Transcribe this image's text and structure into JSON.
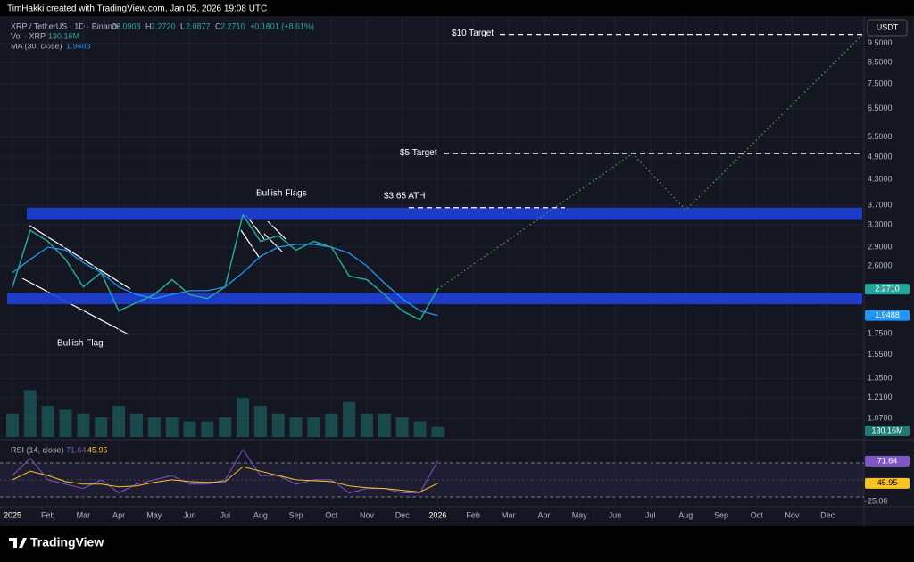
{
  "chart_data": {
    "type": "line",
    "header": "TimHakki created with TradingView.com, Jan 05, 2026 19:08 UTC",
    "symbol": "XRP / TetherUS · 1D · Binance",
    "ohlc": [
      {
        "label": "O",
        "value": "2.0908"
      },
      {
        "label": "H",
        "value": "2.2720"
      },
      {
        "label": "L",
        "value": "2.0877"
      },
      {
        "label": "C",
        "value": "2.2710"
      }
    ],
    "change": "+0.1801 (+8.61%)",
    "currency": "USDT",
    "footer": "TradingView",
    "categories": [
      "2025",
      null,
      "Feb",
      null,
      "Mar",
      null,
      "Apr",
      null,
      "May",
      null,
      "Jun",
      null,
      "Jul",
      null,
      "Aug",
      null,
      "Sep",
      null,
      "Oct",
      null,
      "Nov",
      null,
      "Dec",
      null,
      "2026",
      null,
      "Feb",
      null,
      "Mar",
      null,
      "Apr",
      null,
      "May",
      null,
      "Jun",
      null,
      "Jul",
      null,
      "Aug",
      null,
      "Sep",
      null,
      "Oct",
      null,
      "Nov",
      null,
      "Dec",
      null,
      null
    ],
    "log_scale": true,
    "ylim": [
      0.96,
      10.9
    ],
    "yticks": [
      {
        "value": 9.5,
        "label": "9.5000"
      },
      {
        "value": 8.5,
        "label": "8.5000"
      },
      {
        "value": 7.5,
        "label": "7.5000"
      },
      {
        "value": 6.5,
        "label": "6.5000"
      },
      {
        "value": 5.5,
        "label": "5.5000"
      },
      {
        "value": 4.9,
        "label": "4.9000"
      },
      {
        "value": 4.3,
        "label": "4.3000"
      },
      {
        "value": 3.7,
        "label": "3.7000"
      },
      {
        "value": 3.3,
        "label": "3.3000"
      },
      {
        "value": 2.9,
        "label": "2.9000"
      },
      {
        "value": 2.6,
        "label": "2.6000"
      },
      {
        "value": 1.75,
        "label": "1.7500"
      },
      {
        "value": 1.55,
        "label": "1.5500"
      },
      {
        "value": 1.35,
        "label": "1.3500"
      },
      {
        "value": 1.21,
        "label": "1.2100"
      },
      {
        "value": 1.07,
        "label": "1.0700"
      }
    ],
    "grid": true,
    "price": {
      "name": "XRP / TetherUS",
      "color": "#26a69a",
      "last_label": "2.2710",
      "values": [
        2.3,
        3.2,
        3.0,
        2.7,
        2.3,
        2.5,
        2.0,
        2.1,
        2.2,
        2.4,
        2.2,
        2.15,
        2.3,
        3.5,
        3.0,
        3.1,
        2.85,
        3.0,
        2.9,
        2.45,
        2.4,
        2.2,
        2.0,
        1.9,
        2.271,
        null,
        null,
        null,
        null,
        null,
        null,
        null,
        null,
        null,
        null,
        null,
        null,
        null,
        null,
        null,
        null,
        null,
        null,
        null,
        null,
        null,
        null,
        null,
        null
      ]
    },
    "ma": {
      "name": "MA (30, close)",
      "color": "#2196f3",
      "last_label": "1.9488",
      "values": [
        2.5,
        2.7,
        2.9,
        2.85,
        2.65,
        2.5,
        2.3,
        2.2,
        2.15,
        2.2,
        2.25,
        2.25,
        2.3,
        2.5,
        2.75,
        2.9,
        2.95,
        2.95,
        2.9,
        2.8,
        2.6,
        2.35,
        2.15,
        2.0,
        1.9488,
        null,
        null,
        null,
        null,
        null,
        null,
        null,
        null,
        null,
        null,
        null,
        null,
        null,
        null,
        null,
        null,
        null,
        null,
        null,
        null,
        null,
        null,
        null,
        null
      ]
    },
    "volume": {
      "name": "Vol · XRP",
      "color": "#26a69a",
      "last_label": "130.16M",
      "ylim": [
        0,
        800
      ],
      "values": [
        300,
        600,
        400,
        350,
        300,
        250,
        400,
        300,
        250,
        250,
        200,
        200,
        250,
        500,
        400,
        300,
        250,
        250,
        300,
        450,
        300,
        300,
        250,
        200,
        130.16,
        null,
        null,
        null,
        null,
        null,
        null,
        null,
        null,
        null,
        null,
        null,
        null,
        null,
        null,
        null,
        null,
        null,
        null,
        null,
        null,
        null,
        null,
        null,
        null
      ]
    },
    "rsi": {
      "name": "RSI (14, close)",
      "color": "#7e57c2",
      "ylim": [
        17,
        89
      ],
      "yticks": [
        {
          "value": 25,
          "label": "25.00"
        }
      ],
      "last_label": "71.64",
      "values": [
        55,
        75,
        50,
        45,
        40,
        50,
        35,
        45,
        50,
        55,
        45,
        45,
        50,
        85,
        55,
        55,
        45,
        50,
        50,
        35,
        40,
        40,
        35,
        35,
        71.64,
        null,
        null,
        null,
        null,
        null,
        null,
        null,
        null,
        null,
        null,
        null,
        null,
        null,
        null,
        null,
        null,
        null,
        null,
        null,
        null,
        null,
        null,
        null,
        null
      ],
      "ma_color": "#f7c325",
      "ma_last_label": "45.95",
      "ma_values": [
        50,
        60,
        55,
        48,
        45,
        45,
        42,
        43,
        47,
        50,
        48,
        47,
        48,
        65,
        60,
        55,
        50,
        49,
        48,
        43,
        41,
        40,
        38,
        36,
        45.95,
        null,
        null,
        null,
        null,
        null,
        null,
        null,
        null,
        null,
        null,
        null,
        null,
        null,
        null,
        null,
        null,
        null,
        null,
        null,
        null,
        null,
        null,
        null,
        null
      ]
    },
    "zones": [
      {
        "low": 3.4,
        "high": 3.65,
        "color": "#1e3fd8"
      },
      {
        "low": 2.08,
        "high": 2.22,
        "color": "#1e3fd8"
      }
    ],
    "levels": [
      {
        "label": "$10 Target",
        "value": 10
      },
      {
        "label": "$5 Target",
        "value": 5
      },
      {
        "label": "$3.65 ATH",
        "value": 3.65
      }
    ],
    "projection": {
      "color": "#4caf50",
      "x": [
        24,
        35,
        38,
        48
      ],
      "values": [
        2.271,
        5.0,
        3.6,
        10.0
      ]
    },
    "annotations": [
      "Bullish Flag",
      "Bullish Flags"
    ]
  }
}
